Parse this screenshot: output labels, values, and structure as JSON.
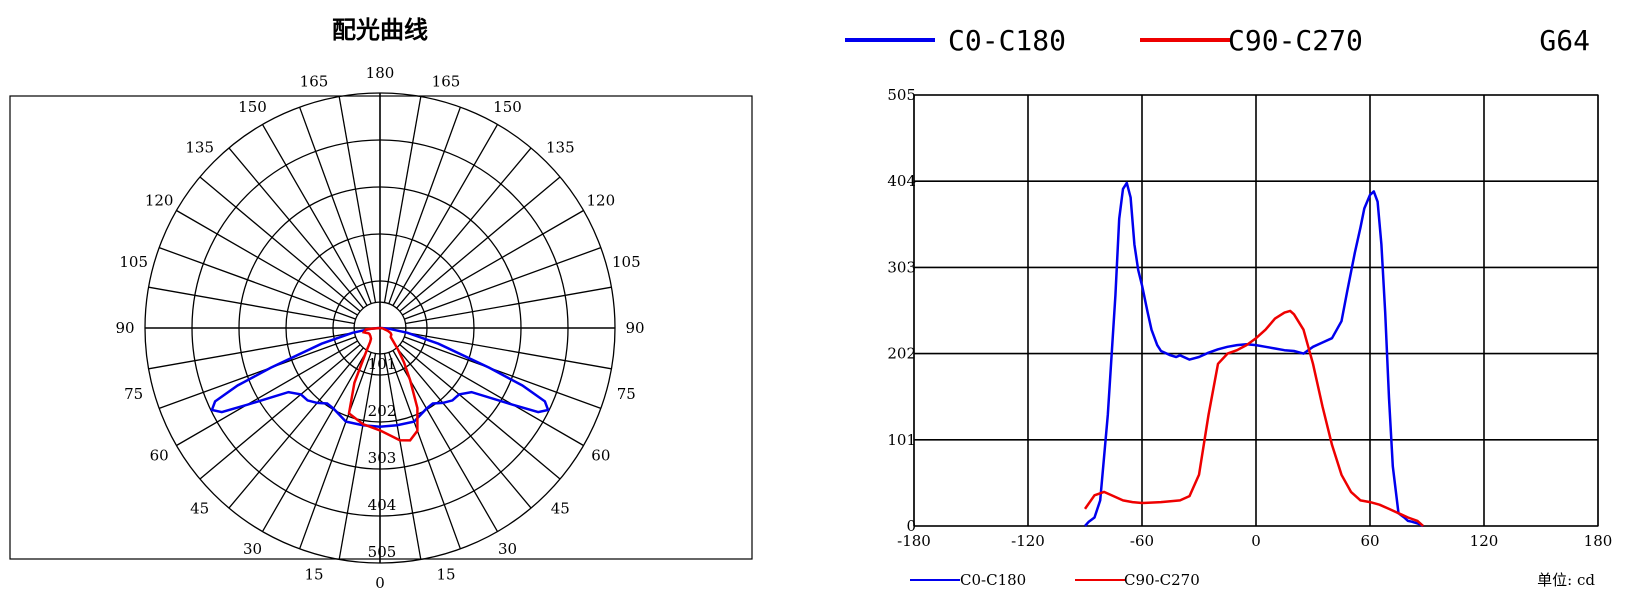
{
  "colors": {
    "c0": "#0000ee",
    "c90": "#ee0000",
    "grid": "#000000"
  },
  "polar_title": "配光曲线",
  "top_legend": {
    "c0": "C0-C180",
    "c90": "C90-C270",
    "code": "G64"
  },
  "bottom_legend": {
    "c0": "C0-C180",
    "c90": "C90-C270",
    "unit": "单位: cd"
  },
  "chart_data": [
    {
      "type": "polar",
      "title": "配光曲线",
      "angle_labels": [
        "0",
        "15",
        "30",
        "45",
        "60",
        "75",
        "90",
        "105",
        "120",
        "135",
        "150",
        "165",
        "180"
      ],
      "radial_labels": [
        "101",
        "202",
        "303",
        "404",
        "505"
      ],
      "rlim": [
        0,
        505
      ],
      "grid": true,
      "series": [
        {
          "name": "C0-C180",
          "color": "#0000ee",
          "angles": [
            0,
            10,
            20,
            30,
            35,
            40,
            45,
            50,
            55,
            60,
            62,
            64,
            66,
            68,
            70,
            75,
            80,
            85,
            88,
            90
          ],
          "values": [
            212,
            212,
            214,
            200,
            198,
            210,
            220,
            222,
            240,
            330,
            385,
            402,
            388,
            330,
            250,
            130,
            60,
            20,
            6,
            0
          ]
        },
        {
          "name": "C90-C270",
          "color": "#ee0000",
          "angles": [
            -90,
            -85,
            -80,
            -75,
            -70,
            -65,
            -60,
            -50,
            -40,
            -35,
            -30,
            -25,
            -20,
            -10,
            0,
            10,
            15,
            20,
            25,
            30,
            35,
            40,
            45,
            50,
            60,
            65,
            70,
            75,
            80,
            85,
            90
          ],
          "values": [
            0,
            30,
            33,
            36,
            31,
            27,
            26,
            27,
            30,
            37,
            60,
            130,
            195,
            210,
            220,
            245,
            250,
            235,
            190,
            130,
            90,
            60,
            40,
            30,
            28,
            25,
            18,
            10,
            7,
            3,
            0
          ]
        }
      ]
    },
    {
      "type": "line",
      "xlim": [
        -180,
        180
      ],
      "ylim": [
        0,
        505
      ],
      "xticks": [
        -180,
        -120,
        -60,
        0,
        60,
        120,
        180
      ],
      "yticks": [
        0,
        101,
        202,
        303,
        404,
        505
      ],
      "grid": true,
      "legend": "top",
      "unit": "单位: cd",
      "series": [
        {
          "name": "C0-C180",
          "color": "#0000ee",
          "x": [
            -90,
            -88,
            -85,
            -82,
            -78,
            -74,
            -72,
            -70,
            -68,
            -66,
            -64,
            -62,
            -60,
            -57,
            -55,
            -52,
            -50,
            -45,
            -42,
            -40,
            -35,
            -30,
            -25,
            -20,
            -15,
            -10,
            -5,
            0,
            5,
            10,
            15,
            20,
            25,
            30,
            35,
            40,
            45,
            48,
            52,
            55,
            57,
            60,
            62,
            64,
            66,
            68,
            70,
            72,
            75,
            78,
            80,
            82,
            85,
            88
          ],
          "y": [
            0,
            5,
            10,
            30,
            130,
            270,
            360,
            395,
            402,
            385,
            330,
            300,
            282,
            250,
            230,
            212,
            205,
            200,
            198,
            200,
            195,
            198,
            203,
            207,
            210,
            212,
            213,
            212,
            210,
            208,
            206,
            205,
            202,
            210,
            215,
            220,
            240,
            275,
            320,
            350,
            372,
            388,
            392,
            380,
            330,
            250,
            150,
            70,
            15,
            10,
            6,
            5,
            3,
            0
          ]
        },
        {
          "name": "C90-C270",
          "color": "#ee0000",
          "x": [
            -90,
            -85,
            -80,
            -75,
            -70,
            -65,
            -60,
            -50,
            -40,
            -35,
            -30,
            -25,
            -20,
            -15,
            -10,
            -5,
            0,
            5,
            10,
            15,
            18,
            20,
            25,
            30,
            35,
            40,
            45,
            50,
            55,
            60,
            65,
            70,
            75,
            80,
            85,
            88
          ],
          "y": [
            20,
            36,
            40,
            35,
            30,
            28,
            27,
            28,
            30,
            35,
            60,
            130,
            190,
            202,
            206,
            212,
            220,
            230,
            243,
            250,
            252,
            248,
            230,
            190,
            140,
            95,
            60,
            40,
            30,
            28,
            25,
            20,
            15,
            10,
            6,
            0
          ]
        }
      ]
    }
  ]
}
